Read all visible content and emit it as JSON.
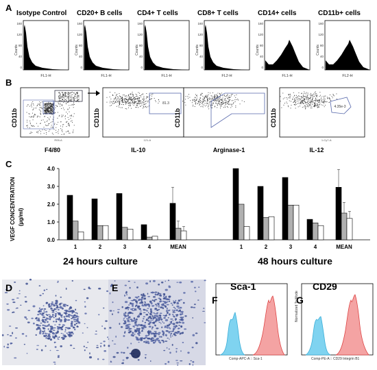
{
  "panels": {
    "A": {
      "letter": "A",
      "histograms": [
        {
          "title": "Isotype Control",
          "xlabel": "FL1-H",
          "shape": "low"
        },
        {
          "title": "CD20+ B cells",
          "xlabel": "FL1-H",
          "shape": "low"
        },
        {
          "title": "CD4+ T cells",
          "xlabel": "FL1-H",
          "shape": "low"
        },
        {
          "title": "CD8+ T cells",
          "xlabel": "FL2-H",
          "shape": "low"
        },
        {
          "title": "CD14+ cells",
          "xlabel": "FL1-H",
          "shape": "mid"
        },
        {
          "title": "CD11b+ cells",
          "xlabel": "FL2-H",
          "shape": "mid"
        }
      ],
      "ylabel": "Counts",
      "yticks": [
        "160",
        "120",
        "80",
        "40",
        "0"
      ]
    },
    "B": {
      "letter": "B",
      "plots": [
        {
          "ylabel": "CD11b",
          "xlabel": "F4/80",
          "sub": "R05-A"
        },
        {
          "ylabel": "CD11b",
          "xlabel": "IL-10",
          "sub": "121-A"
        },
        {
          "ylabel": "CD11b",
          "xlabel": "Arginase-1",
          "sub": ""
        },
        {
          "ylabel": "CD11b",
          "xlabel": "IL-12",
          "sub": "1-Cy7-A"
        }
      ],
      "gate_labels": [
        "81.3",
        "4.35e-3"
      ]
    },
    "C": {
      "letter": "C",
      "chart_data": {
        "type": "bar",
        "ylabel": "VEGF CONCENTRATION (µg/ml)",
        "ylabel_line1": "VEGF CONCENTRATION",
        "ylabel_line2": "(µg/ml)",
        "ylim": [
          0,
          4.0
        ],
        "yticks": [
          "0.0",
          "1.0",
          "2.0",
          "3.0",
          "4.0"
        ],
        "groups": [
          {
            "name": "24 hours culture",
            "categories": [
              "1",
              "2",
              "3",
              "4",
              "MEAN"
            ],
            "series": [
              {
                "color": "#000000",
                "values": [
                  2.5,
                  2.3,
                  2.6,
                  0.85,
                  2.05
                ],
                "errors": [
                  0,
                  0,
                  0,
                  0,
                  0.9
                ]
              },
              {
                "color": "#b0b0b0",
                "values": [
                  1.05,
                  0.8,
                  0.7,
                  0.15,
                  0.65
                ],
                "errors": [
                  0,
                  0,
                  0,
                  0,
                  0.4
                ]
              },
              {
                "color": "#ffffff",
                "values": [
                  0.45,
                  0.8,
                  0.6,
                  0.2,
                  0.5
                ],
                "errors": [
                  0,
                  0,
                  0,
                  0,
                  0.25
                ]
              }
            ]
          },
          {
            "name": "48 hours culture",
            "categories": [
              "1",
              "2",
              "3",
              "4",
              "MEAN"
            ],
            "series": [
              {
                "color": "#000000",
                "values": [
                  4.0,
                  3.0,
                  3.5,
                  1.15,
                  2.95
                ],
                "errors": [
                  0,
                  0,
                  0,
                  0,
                  1.0
                ]
              },
              {
                "color": "#b0b0b0",
                "values": [
                  2.0,
                  1.25,
                  1.95,
                  0.95,
                  1.5
                ],
                "errors": [
                  0,
                  0,
                  0,
                  0,
                  0.6
                ]
              },
              {
                "color": "#ffffff",
                "values": [
                  0.75,
                  1.3,
                  1.95,
                  0.8,
                  1.2
                ],
                "errors": [
                  0,
                  0,
                  0,
                  0,
                  0.4
                ]
              }
            ]
          }
        ]
      }
    },
    "D": {
      "letter": "D"
    },
    "E": {
      "letter": "E"
    },
    "F": {
      "letter": "F",
      "title": "Sca-1",
      "xlabel": "Comp-APC-A :: Sca-1"
    },
    "G": {
      "letter": "G",
      "title": "CD29",
      "xlabel": "Comp-PE-A :: CD29 Integrin B1",
      "ylabel": "Normalized To Mode"
    }
  }
}
